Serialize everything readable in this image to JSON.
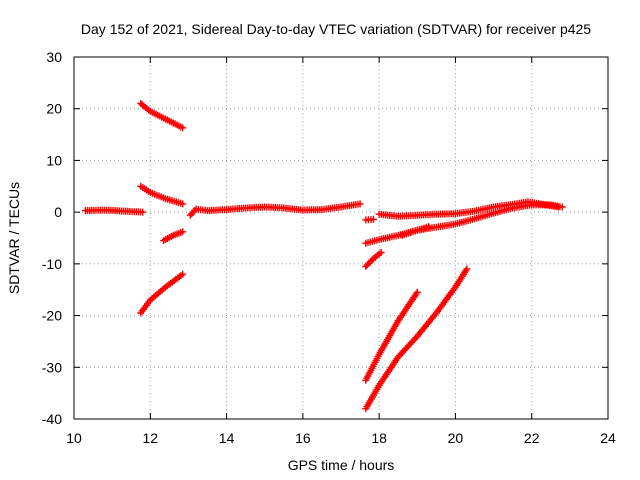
{
  "chart_data": {
    "type": "scatter",
    "title": "Day 152 of 2021, Sidereal Day-to-day VTEC variation (SDTVAR) for receiver p425",
    "xlabel": "GPS time / hours",
    "ylabel": "SDTVAR / TECUs",
    "xlim": [
      10,
      24
    ],
    "ylim": [
      -40,
      30
    ],
    "xticks": [
      10,
      12,
      14,
      16,
      18,
      20,
      22,
      24
    ],
    "yticks": [
      -40,
      -30,
      -20,
      -10,
      0,
      10,
      20,
      30
    ],
    "xtick_labels": [
      "10",
      "12",
      "14",
      "16",
      "18",
      "20",
      "22",
      "24"
    ],
    "ytick_labels": [
      "-40",
      "-30",
      "-20",
      "-10",
      "0",
      "10",
      "20",
      "30"
    ],
    "grid": true,
    "legend": "none",
    "marker": "plus",
    "color": "#ff0000",
    "series": [
      {
        "name": "track-1",
        "points": [
          [
            10.3,
            0.3
          ],
          [
            10.8,
            0.4
          ],
          [
            11.3,
            0.2
          ],
          [
            11.8,
            0.0
          ]
        ]
      },
      {
        "name": "track-2",
        "points": [
          [
            11.75,
            21.0
          ],
          [
            12.0,
            19.5
          ],
          [
            12.4,
            18.0
          ],
          [
            12.85,
            16.3
          ]
        ]
      },
      {
        "name": "track-3",
        "points": [
          [
            11.75,
            5.0
          ],
          [
            12.0,
            3.8
          ],
          [
            12.4,
            2.6
          ],
          [
            12.85,
            1.6
          ]
        ]
      },
      {
        "name": "track-4",
        "points": [
          [
            12.35,
            -5.5
          ],
          [
            12.6,
            -4.5
          ],
          [
            12.85,
            -3.8
          ]
        ]
      },
      {
        "name": "track-5",
        "points": [
          [
            11.75,
            -19.5
          ],
          [
            12.0,
            -17.0
          ],
          [
            12.4,
            -14.5
          ],
          [
            12.85,
            -12.0
          ]
        ]
      },
      {
        "name": "track-6",
        "points": [
          [
            13.05,
            -0.6
          ],
          [
            13.2,
            0.6
          ],
          [
            13.5,
            0.3
          ],
          [
            14.0,
            0.5
          ],
          [
            14.5,
            0.8
          ],
          [
            15.0,
            1.0
          ],
          [
            15.5,
            0.8
          ],
          [
            16.0,
            0.4
          ],
          [
            16.5,
            0.5
          ],
          [
            17.0,
            1.0
          ],
          [
            17.5,
            1.6
          ]
        ]
      },
      {
        "name": "track-7",
        "points": [
          [
            17.65,
            -1.5
          ],
          [
            17.85,
            -1.4
          ]
        ]
      },
      {
        "name": "track-8",
        "points": [
          [
            18.0,
            -0.4
          ],
          [
            18.5,
            -0.8
          ],
          [
            19.0,
            -0.6
          ],
          [
            19.5,
            -0.4
          ],
          [
            20.0,
            -0.3
          ],
          [
            20.5,
            0.2
          ],
          [
            21.0,
            1.0
          ],
          [
            21.5,
            1.5
          ],
          [
            21.9,
            2.0
          ],
          [
            22.3,
            1.5
          ],
          [
            22.7,
            1.0
          ]
        ]
      },
      {
        "name": "track-9",
        "points": [
          [
            17.65,
            -6.0
          ],
          [
            18.0,
            -5.3
          ],
          [
            18.5,
            -4.5
          ],
          [
            19.0,
            -3.5
          ],
          [
            19.5,
            -2.9
          ],
          [
            20.0,
            -2.3
          ],
          [
            20.5,
            -1.3
          ],
          [
            21.0,
            -0.2
          ],
          [
            21.5,
            0.8
          ],
          [
            22.0,
            1.4
          ],
          [
            22.5,
            1.4
          ],
          [
            22.8,
            1.0
          ]
        ]
      },
      {
        "name": "track-10",
        "points": [
          [
            18.6,
            -4.5
          ],
          [
            19.0,
            -3.5
          ],
          [
            19.3,
            -2.8
          ]
        ]
      },
      {
        "name": "track-11",
        "points": [
          [
            17.65,
            -10.5
          ],
          [
            17.85,
            -9.0
          ],
          [
            18.05,
            -7.8
          ]
        ]
      },
      {
        "name": "track-12",
        "points": [
          [
            17.65,
            -32.5
          ],
          [
            18.0,
            -27.5
          ],
          [
            18.5,
            -21.0
          ],
          [
            19.0,
            -15.5
          ]
        ]
      },
      {
        "name": "track-13",
        "points": [
          [
            17.65,
            -38.0
          ],
          [
            18.0,
            -33.5
          ],
          [
            18.5,
            -28.0
          ],
          [
            19.0,
            -24.0
          ],
          [
            19.5,
            -19.5
          ],
          [
            20.0,
            -14.5
          ],
          [
            20.3,
            -11.0
          ]
        ]
      }
    ]
  }
}
